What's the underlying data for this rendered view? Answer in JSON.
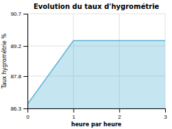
{
  "chart_data": {
    "type": "area",
    "title": "Evolution du taux d'hygrométrie",
    "xlabel": "heure par heure",
    "ylabel": "Taux hygrométrie %",
    "x": [
      0,
      1,
      3
    ],
    "values": [
      86.5,
      89.45,
      89.45
    ],
    "color": "#5ab4d4",
    "xlim": [
      0,
      3
    ],
    "ylim": [
      86.3,
      90.7
    ],
    "xticks": [
      0,
      1,
      2,
      3
    ],
    "yticks": [
      86.3,
      87.8,
      89.2,
      90.7
    ],
    "grid": true
  }
}
